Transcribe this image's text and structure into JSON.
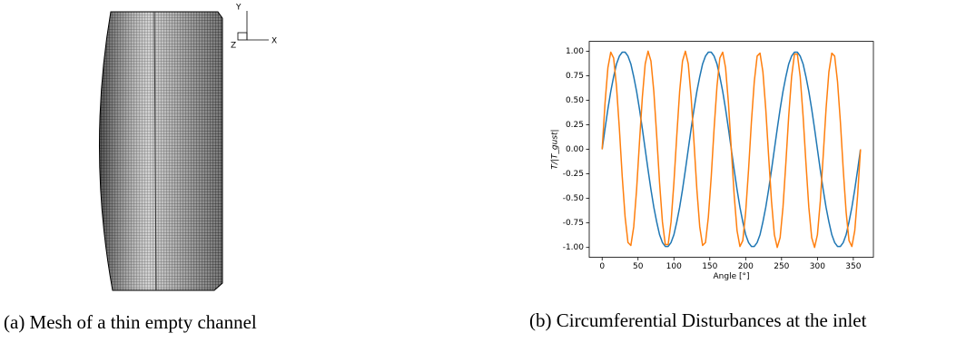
{
  "mesh": {
    "axes": [
      "Y",
      "Z",
      "X"
    ]
  },
  "captions": [
    "(a) Mesh of a thin empty channel",
    "(b) Circumferential Disturbances at the inlet"
  ],
  "chart_data": {
    "type": "line",
    "x_label": "Angle [°]",
    "y_label": "T/|T_gust|",
    "x": [
      0,
      4,
      8,
      12,
      16,
      20,
      24,
      28,
      32,
      36,
      40,
      44,
      48,
      52,
      56,
      60,
      64,
      68,
      72,
      76,
      80,
      84,
      88,
      92,
      96,
      100,
      104,
      108,
      112,
      116,
      120,
      124,
      128,
      132,
      136,
      140,
      144,
      148,
      152,
      156,
      160,
      164,
      168,
      172,
      176,
      180,
      184,
      188,
      192,
      196,
      200,
      204,
      208,
      212,
      216,
      220,
      224,
      228,
      232,
      236,
      240,
      244,
      248,
      252,
      256,
      260,
      264,
      268,
      272,
      276,
      280,
      284,
      288,
      292,
      296,
      300,
      304,
      308,
      312,
      316,
      320,
      324,
      328,
      332,
      336,
      340,
      344,
      348,
      352,
      356,
      360
    ],
    "series": [
      {
        "color": "#1f77b4",
        "values": [
          0,
          0.21,
          0.41,
          0.59,
          0.74,
          0.87,
          0.95,
          0.99,
          0.99,
          0.95,
          0.87,
          0.74,
          0.59,
          0.41,
          0.21,
          0,
          -0.21,
          -0.41,
          -0.59,
          -0.74,
          -0.87,
          -0.95,
          -0.99,
          -0.99,
          -0.95,
          -0.87,
          -0.74,
          -0.59,
          -0.41,
          -0.21,
          0,
          0.21,
          0.41,
          0.59,
          0.74,
          0.87,
          0.95,
          0.99,
          0.99,
          0.95,
          0.87,
          0.74,
          0.59,
          0.41,
          0.21,
          0,
          -0.21,
          -0.41,
          -0.59,
          -0.74,
          -0.87,
          -0.95,
          -0.99,
          -0.99,
          -0.95,
          -0.87,
          -0.74,
          -0.59,
          -0.41,
          -0.21,
          0,
          0.21,
          0.41,
          0.59,
          0.74,
          0.87,
          0.95,
          0.99,
          0.99,
          0.95,
          0.87,
          0.74,
          0.59,
          0.41,
          0.21,
          0,
          -0.21,
          -0.41,
          -0.59,
          -0.74,
          -0.87,
          -0.95,
          -0.99,
          -0.99,
          -0.95,
          -0.87,
          -0.74,
          -0.59,
          -0.41,
          -0.21,
          0
        ]
      },
      {
        "color": "#ff7f0e",
        "values": [
          0,
          0.47,
          0.83,
          0.99,
          0.93,
          0.64,
          0.21,
          -0.28,
          -0.69,
          -0.95,
          -0.98,
          -0.79,
          -0.41,
          0.07,
          0.53,
          0.87,
          1.0,
          0.9,
          0.59,
          0.14,
          -0.34,
          -0.74,
          -0.97,
          -0.97,
          -0.74,
          -0.34,
          0.14,
          0.59,
          0.9,
          1.0,
          0.87,
          0.53,
          0.07,
          -0.41,
          -0.79,
          -0.98,
          -0.95,
          -0.69,
          -0.28,
          0.21,
          0.64,
          0.93,
          0.99,
          0.83,
          0.47,
          0,
          -0.47,
          -0.83,
          -0.99,
          -0.93,
          -0.64,
          -0.21,
          0.28,
          0.69,
          0.95,
          0.98,
          0.79,
          0.41,
          -0.07,
          -0.53,
          -0.87,
          -1.0,
          -0.9,
          -0.59,
          -0.14,
          0.34,
          0.74,
          0.97,
          0.97,
          0.74,
          0.34,
          -0.14,
          -0.59,
          -0.9,
          -1.0,
          -0.87,
          -0.53,
          -0.07,
          0.41,
          0.79,
          0.98,
          0.95,
          0.69,
          0.28,
          -0.21,
          -0.64,
          -0.93,
          -0.99,
          -0.83,
          -0.47,
          0
        ]
      }
    ],
    "xlim": [
      -18,
      378
    ],
    "ylim": [
      -1.1,
      1.1
    ],
    "xticks": [
      0,
      50,
      100,
      150,
      200,
      250,
      300,
      350
    ],
    "yticks": [
      {
        "value": -1,
        "label": "-1.00"
      },
      {
        "value": -0.75,
        "label": "-0.75"
      },
      {
        "value": -0.5,
        "label": "-0.50"
      },
      {
        "value": -0.25,
        "label": "-0.25"
      },
      {
        "value": 0,
        "label": "0.00"
      },
      {
        "value": 0.25,
        "label": "0.25"
      },
      {
        "value": 0.5,
        "label": "0.50"
      },
      {
        "value": 0.75,
        "label": "0.75"
      },
      {
        "value": 1,
        "label": "1.00"
      }
    ]
  }
}
